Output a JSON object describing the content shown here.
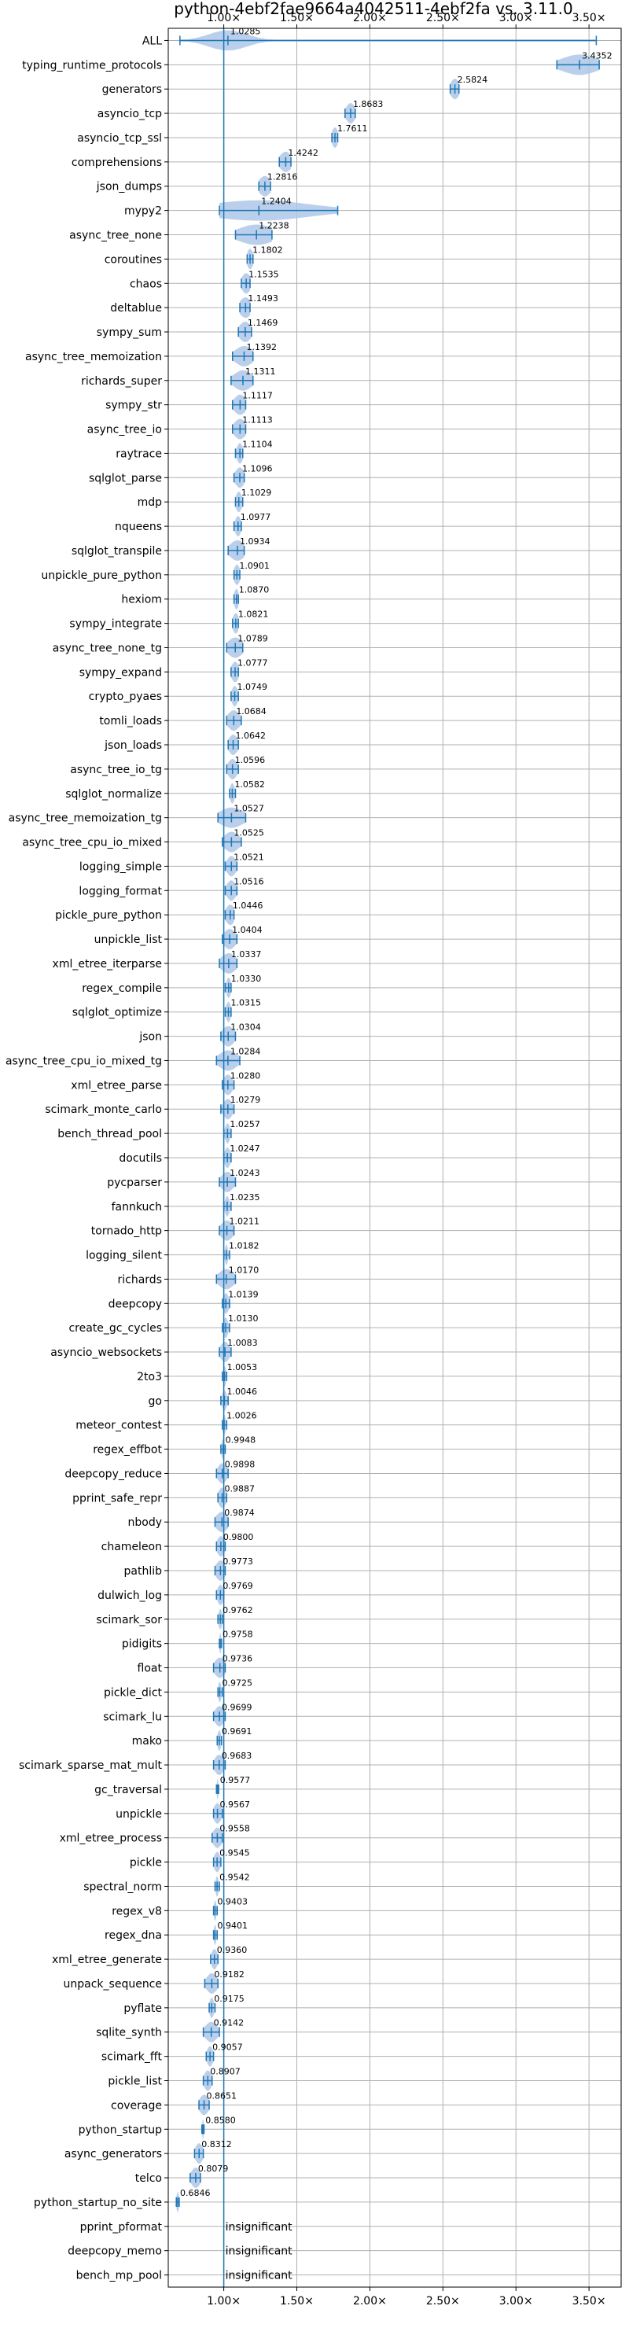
{
  "chart_data": {
    "type": "violin",
    "title": "python-4ebf2fae9664a4042511-4ebf2fa vs. 3.11.0",
    "xlabel": "",
    "ylabel": "",
    "x_tick_values": [
      1.0,
      1.5,
      2.0,
      2.5,
      3.0,
      3.5
    ],
    "x_tick_labels": [
      "1.00×",
      "1.50×",
      "2.00×",
      "2.50×",
      "3.00×",
      "3.50×"
    ],
    "xlim": [
      0.62,
      3.72
    ],
    "reference_line": 1.0,
    "grid": true,
    "insignificant_text": "insignificant",
    "colors": {
      "violin": "#aec7e8",
      "line": "#1f77b4",
      "grid": "#b0b0b0"
    },
    "benchmarks": [
      {
        "name": "ALL",
        "value": 1.0285,
        "label": "1.0285",
        "min": 0.7,
        "max": 3.55,
        "spread": 0.13
      },
      {
        "name": "typing_runtime_protocols",
        "value": 3.4352,
        "label": "3.4352",
        "min": 3.28,
        "max": 3.57,
        "spread": 0.12
      },
      {
        "name": "generators",
        "value": 2.5824,
        "label": "2.5824",
        "min": 2.55,
        "max": 2.61,
        "spread": 0.03
      },
      {
        "name": "asyncio_tcp",
        "value": 1.8683,
        "label": "1.8683",
        "min": 1.83,
        "max": 1.9,
        "spread": 0.03
      },
      {
        "name": "asyncio_tcp_ssl",
        "value": 1.7611,
        "label": "1.7611",
        "min": 1.74,
        "max": 1.78,
        "spread": 0.02
      },
      {
        "name": "comprehensions",
        "value": 1.4242,
        "label": "1.4242",
        "min": 1.38,
        "max": 1.46,
        "spread": 0.04
      },
      {
        "name": "json_dumps",
        "value": 1.2816,
        "label": "1.2816",
        "min": 1.24,
        "max": 1.32,
        "spread": 0.04
      },
      {
        "name": "mypy2",
        "value": 1.2404,
        "label": "1.2404",
        "min": 0.97,
        "max": 1.78,
        "spread": 0.35
      },
      {
        "name": "async_tree_none",
        "value": 1.2238,
        "label": "1.2238",
        "min": 1.08,
        "max": 1.33,
        "spread": 0.12
      },
      {
        "name": "coroutines",
        "value": 1.1802,
        "label": "1.1802",
        "min": 1.16,
        "max": 1.2,
        "spread": 0.02
      },
      {
        "name": "chaos",
        "value": 1.1535,
        "label": "1.1535",
        "min": 1.12,
        "max": 1.18,
        "spread": 0.03
      },
      {
        "name": "deltablue",
        "value": 1.1493,
        "label": "1.1493",
        "min": 1.11,
        "max": 1.18,
        "spread": 0.04
      },
      {
        "name": "sympy_sum",
        "value": 1.1469,
        "label": "1.1469",
        "min": 1.1,
        "max": 1.19,
        "spread": 0.04
      },
      {
        "name": "async_tree_memoization",
        "value": 1.1392,
        "label": "1.1392",
        "min": 1.06,
        "max": 1.2,
        "spread": 0.06
      },
      {
        "name": "richards_super",
        "value": 1.1311,
        "label": "1.1311",
        "min": 1.05,
        "max": 1.2,
        "spread": 0.06
      },
      {
        "name": "sympy_str",
        "value": 1.1117,
        "label": "1.1117",
        "min": 1.06,
        "max": 1.15,
        "spread": 0.04
      },
      {
        "name": "async_tree_io",
        "value": 1.1113,
        "label": "1.1113",
        "min": 1.06,
        "max": 1.15,
        "spread": 0.04
      },
      {
        "name": "raytrace",
        "value": 1.1104,
        "label": "1.1104",
        "min": 1.08,
        "max": 1.13,
        "spread": 0.02
      },
      {
        "name": "sqlglot_parse",
        "value": 1.1096,
        "label": "1.1096",
        "min": 1.07,
        "max": 1.14,
        "spread": 0.03
      },
      {
        "name": "mdp",
        "value": 1.1029,
        "label": "1.1029",
        "min": 1.08,
        "max": 1.13,
        "spread": 0.02
      },
      {
        "name": "nqueens",
        "value": 1.0977,
        "label": "1.0977",
        "min": 1.07,
        "max": 1.12,
        "spread": 0.02
      },
      {
        "name": "sqlglot_transpile",
        "value": 1.0934,
        "label": "1.0934",
        "min": 1.03,
        "max": 1.14,
        "spread": 0.05
      },
      {
        "name": "unpickle_pure_python",
        "value": 1.0901,
        "label": "1.0901",
        "min": 1.07,
        "max": 1.11,
        "spread": 0.02
      },
      {
        "name": "hexiom",
        "value": 1.087,
        "label": "1.0870",
        "min": 1.07,
        "max": 1.1,
        "spread": 0.015
      },
      {
        "name": "sympy_integrate",
        "value": 1.0821,
        "label": "1.0821",
        "min": 1.06,
        "max": 1.1,
        "spread": 0.02
      },
      {
        "name": "async_tree_none_tg",
        "value": 1.0789,
        "label": "1.0789",
        "min": 1.02,
        "max": 1.13,
        "spread": 0.05
      },
      {
        "name": "sympy_expand",
        "value": 1.0777,
        "label": "1.0777",
        "min": 1.05,
        "max": 1.1,
        "spread": 0.025
      },
      {
        "name": "crypto_pyaes",
        "value": 1.0749,
        "label": "1.0749",
        "min": 1.05,
        "max": 1.1,
        "spread": 0.02
      },
      {
        "name": "tomli_loads",
        "value": 1.0684,
        "label": "1.0684",
        "min": 1.02,
        "max": 1.12,
        "spread": 0.04
      },
      {
        "name": "json_loads",
        "value": 1.0642,
        "label": "1.0642",
        "min": 1.03,
        "max": 1.1,
        "spread": 0.03
      },
      {
        "name": "async_tree_io_tg",
        "value": 1.0596,
        "label": "1.0596",
        "min": 1.02,
        "max": 1.1,
        "spread": 0.03
      },
      {
        "name": "sqlglot_normalize",
        "value": 1.0582,
        "label": "1.0582",
        "min": 1.04,
        "max": 1.08,
        "spread": 0.015
      },
      {
        "name": "async_tree_memoization_tg",
        "value": 1.0527,
        "label": "1.0527",
        "min": 0.96,
        "max": 1.15,
        "spread": 0.08
      },
      {
        "name": "async_tree_cpu_io_mixed",
        "value": 1.0525,
        "label": "1.0525",
        "min": 0.99,
        "max": 1.12,
        "spread": 0.05
      },
      {
        "name": "logging_simple",
        "value": 1.0521,
        "label": "1.0521",
        "min": 1.01,
        "max": 1.09,
        "spread": 0.03
      },
      {
        "name": "logging_format",
        "value": 1.0516,
        "label": "1.0516",
        "min": 1.01,
        "max": 1.09,
        "spread": 0.03
      },
      {
        "name": "pickle_pure_python",
        "value": 1.0446,
        "label": "1.0446",
        "min": 1.01,
        "max": 1.07,
        "spread": 0.03
      },
      {
        "name": "unpickle_list",
        "value": 1.0404,
        "label": "1.0404",
        "min": 0.99,
        "max": 1.09,
        "spread": 0.04
      },
      {
        "name": "xml_etree_iterparse",
        "value": 1.0337,
        "label": "1.0337",
        "min": 0.97,
        "max": 1.09,
        "spread": 0.05
      },
      {
        "name": "regex_compile",
        "value": 1.033,
        "label": "1.0330",
        "min": 1.01,
        "max": 1.05,
        "spread": 0.015
      },
      {
        "name": "sqlglot_optimize",
        "value": 1.0315,
        "label": "1.0315",
        "min": 1.01,
        "max": 1.05,
        "spread": 0.015
      },
      {
        "name": "json",
        "value": 1.0304,
        "label": "1.0304",
        "min": 0.98,
        "max": 1.08,
        "spread": 0.04
      },
      {
        "name": "async_tree_cpu_io_mixed_tg",
        "value": 1.0284,
        "label": "1.0284",
        "min": 0.95,
        "max": 1.11,
        "spread": 0.06
      },
      {
        "name": "xml_etree_parse",
        "value": 1.028,
        "label": "1.0280",
        "min": 0.99,
        "max": 1.07,
        "spread": 0.03
      },
      {
        "name": "scimark_monte_carlo",
        "value": 1.0279,
        "label": "1.0279",
        "min": 0.98,
        "max": 1.07,
        "spread": 0.03
      },
      {
        "name": "bench_thread_pool",
        "value": 1.0257,
        "label": "1.0257",
        "min": 1.0,
        "max": 1.05,
        "spread": 0.015
      },
      {
        "name": "docutils",
        "value": 1.0247,
        "label": "1.0247",
        "min": 1.0,
        "max": 1.05,
        "spread": 0.02
      },
      {
        "name": "pycparser",
        "value": 1.0243,
        "label": "1.0243",
        "min": 0.97,
        "max": 1.08,
        "spread": 0.04
      },
      {
        "name": "fannkuch",
        "value": 1.0235,
        "label": "1.0235",
        "min": 1.0,
        "max": 1.05,
        "spread": 0.015
      },
      {
        "name": "tornado_http",
        "value": 1.0211,
        "label": "1.0211",
        "min": 0.97,
        "max": 1.07,
        "spread": 0.04
      },
      {
        "name": "logging_silent",
        "value": 1.0182,
        "label": "1.0182",
        "min": 1.0,
        "max": 1.04,
        "spread": 0.01
      },
      {
        "name": "richards",
        "value": 1.017,
        "label": "1.0170",
        "min": 0.95,
        "max": 1.08,
        "spread": 0.05
      },
      {
        "name": "deepcopy",
        "value": 1.0139,
        "label": "1.0139",
        "min": 0.99,
        "max": 1.04,
        "spread": 0.02
      },
      {
        "name": "create_gc_cycles",
        "value": 1.013,
        "label": "1.0130",
        "min": 0.99,
        "max": 1.04,
        "spread": 0.015
      },
      {
        "name": "asyncio_websockets",
        "value": 1.0083,
        "label": "1.0083",
        "min": 0.97,
        "max": 1.05,
        "spread": 0.03
      },
      {
        "name": "2to3",
        "value": 1.0053,
        "label": "1.0053",
        "min": 0.99,
        "max": 1.02,
        "spread": 0.01
      },
      {
        "name": "go",
        "value": 1.0046,
        "label": "1.0046",
        "min": 0.98,
        "max": 1.03,
        "spread": 0.015
      },
      {
        "name": "meteor_contest",
        "value": 1.0026,
        "label": "1.0026",
        "min": 0.99,
        "max": 1.02,
        "spread": 0.01
      },
      {
        "name": "regex_effbot",
        "value": 0.9948,
        "label": "0.9948",
        "min": 0.98,
        "max": 1.01,
        "spread": 0.01
      },
      {
        "name": "deepcopy_reduce",
        "value": 0.9898,
        "label": "0.9898",
        "min": 0.95,
        "max": 1.03,
        "spread": 0.03
      },
      {
        "name": "pprint_safe_repr",
        "value": 0.9887,
        "label": "0.9887",
        "min": 0.96,
        "max": 1.02,
        "spread": 0.025
      },
      {
        "name": "nbody",
        "value": 0.9874,
        "label": "0.9874",
        "min": 0.94,
        "max": 1.03,
        "spread": 0.04
      },
      {
        "name": "chameleon",
        "value": 0.98,
        "label": "0.9800",
        "min": 0.95,
        "max": 1.01,
        "spread": 0.025
      },
      {
        "name": "pathlib",
        "value": 0.9773,
        "label": "0.9773",
        "min": 0.94,
        "max": 1.01,
        "spread": 0.03
      },
      {
        "name": "dulwich_log",
        "value": 0.9769,
        "label": "0.9769",
        "min": 0.95,
        "max": 1.0,
        "spread": 0.02
      },
      {
        "name": "scimark_sor",
        "value": 0.9762,
        "label": "0.9762",
        "min": 0.96,
        "max": 0.99,
        "spread": 0.012
      },
      {
        "name": "pidigits",
        "value": 0.9758,
        "label": "0.9758",
        "min": 0.97,
        "max": 0.985,
        "spread": 0.006
      },
      {
        "name": "float",
        "value": 0.9736,
        "label": "0.9736",
        "min": 0.93,
        "max": 1.01,
        "spread": 0.035
      },
      {
        "name": "pickle_dict",
        "value": 0.9725,
        "label": "0.9725",
        "min": 0.96,
        "max": 0.99,
        "spread": 0.01
      },
      {
        "name": "scimark_lu",
        "value": 0.9699,
        "label": "0.9699",
        "min": 0.93,
        "max": 1.01,
        "spread": 0.03
      },
      {
        "name": "mako",
        "value": 0.9691,
        "label": "0.9691",
        "min": 0.955,
        "max": 0.985,
        "spread": 0.012
      },
      {
        "name": "scimark_sparse_mat_mult",
        "value": 0.9683,
        "label": "0.9683",
        "min": 0.93,
        "max": 1.01,
        "spread": 0.03
      },
      {
        "name": "gc_traversal",
        "value": 0.9577,
        "label": "0.9577",
        "min": 0.95,
        "max": 0.965,
        "spread": 0.005
      },
      {
        "name": "unpickle",
        "value": 0.9567,
        "label": "0.9567",
        "min": 0.93,
        "max": 0.99,
        "spread": 0.025
      },
      {
        "name": "xml_etree_process",
        "value": 0.9558,
        "label": "0.9558",
        "min": 0.92,
        "max": 0.99,
        "spread": 0.03
      },
      {
        "name": "pickle",
        "value": 0.9545,
        "label": "0.9545",
        "min": 0.93,
        "max": 0.98,
        "spread": 0.02
      },
      {
        "name": "spectral_norm",
        "value": 0.9542,
        "label": "0.9542",
        "min": 0.94,
        "max": 0.97,
        "spread": 0.01
      },
      {
        "name": "regex_v8",
        "value": 0.9403,
        "label": "0.9403",
        "min": 0.93,
        "max": 0.955,
        "spread": 0.008
      },
      {
        "name": "regex_dna",
        "value": 0.9401,
        "label": "0.9401",
        "min": 0.93,
        "max": 0.955,
        "spread": 0.008
      },
      {
        "name": "xml_etree_generate",
        "value": 0.936,
        "label": "0.9360",
        "min": 0.91,
        "max": 0.96,
        "spread": 0.02
      },
      {
        "name": "unpack_sequence",
        "value": 0.9182,
        "label": "0.9182",
        "min": 0.87,
        "max": 0.96,
        "spread": 0.035
      },
      {
        "name": "pyflate",
        "value": 0.9175,
        "label": "0.9175",
        "min": 0.9,
        "max": 0.94,
        "spread": 0.015
      },
      {
        "name": "sqlite_synth",
        "value": 0.9142,
        "label": "0.9142",
        "min": 0.86,
        "max": 0.97,
        "spread": 0.04
      },
      {
        "name": "scimark_fft",
        "value": 0.9057,
        "label": "0.9057",
        "min": 0.88,
        "max": 0.93,
        "spread": 0.02
      },
      {
        "name": "pickle_list",
        "value": 0.8907,
        "label": "0.8907",
        "min": 0.86,
        "max": 0.92,
        "spread": 0.025
      },
      {
        "name": "coverage",
        "value": 0.8651,
        "label": "0.8651",
        "min": 0.83,
        "max": 0.9,
        "spread": 0.03
      },
      {
        "name": "python_startup",
        "value": 0.858,
        "label": "0.8580",
        "min": 0.85,
        "max": 0.865,
        "spread": 0.005
      },
      {
        "name": "async_generators",
        "value": 0.8312,
        "label": "0.8312",
        "min": 0.8,
        "max": 0.86,
        "spread": 0.025
      },
      {
        "name": "telco",
        "value": 0.8079,
        "label": "0.8079",
        "min": 0.77,
        "max": 0.84,
        "spread": 0.03
      },
      {
        "name": "python_startup_no_site",
        "value": 0.6846,
        "label": "0.6846",
        "min": 0.675,
        "max": 0.695,
        "spread": 0.008
      },
      {
        "name": "pprint_pformat",
        "value": null,
        "label": "",
        "insignificant": true
      },
      {
        "name": "deepcopy_memo",
        "value": null,
        "label": "",
        "insignificant": true
      },
      {
        "name": "bench_mp_pool",
        "value": null,
        "label": "",
        "insignificant": true
      }
    ]
  }
}
